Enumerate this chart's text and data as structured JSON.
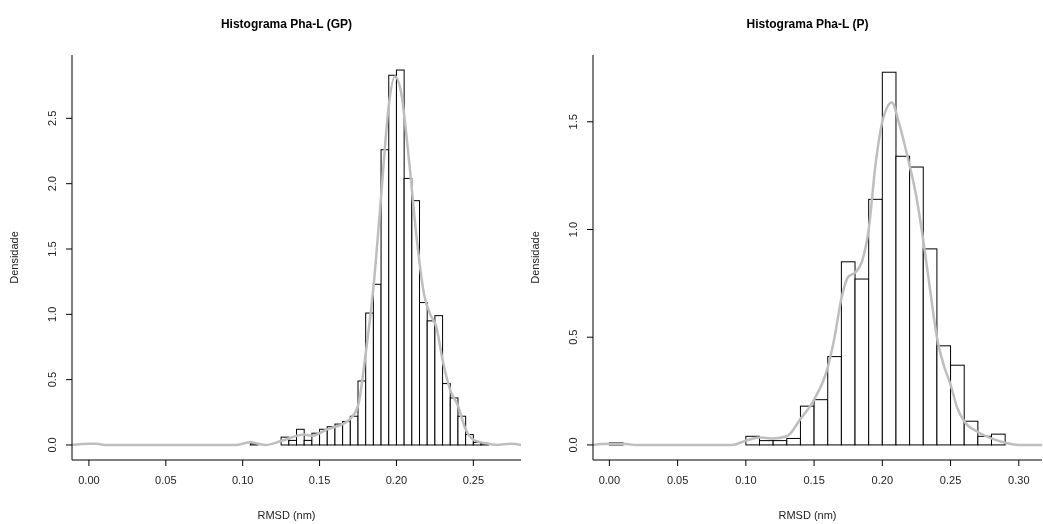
{
  "chart_data": [
    {
      "type": "histogram",
      "title": "Histograma Pha-L (GP)",
      "xlabel": "RMSD (nm)",
      "ylabel": "Densidade",
      "color": "#ffffff",
      "bins": [
        0.005,
        0.01,
        0.015,
        0.02,
        0.025,
        0.03,
        0.035,
        0.04,
        0.045,
        0.05,
        0.055,
        0.06,
        0.065,
        0.07,
        0.075,
        0.08,
        0.085,
        0.09,
        0.095,
        0.1,
        0.105,
        0.11,
        0.115,
        0.12,
        0.125,
        0.13,
        0.135,
        0.14,
        0.145,
        0.15,
        0.155,
        0.16,
        0.165,
        0.17,
        0.175,
        0.18,
        0.185,
        0.19,
        0.195,
        0.2,
        0.205,
        0.21,
        0.215,
        0.22,
        0.225,
        0.23,
        0.235,
        0.24,
        0.245,
        0.25,
        0.255,
        0.26,
        0.265,
        0.27
      ],
      "values": [
        0,
        0,
        0,
        0,
        0,
        0,
        0,
        0,
        0,
        0,
        0,
        0,
        0,
        0,
        0,
        0,
        0,
        0,
        0,
        null,
        0.01,
        0,
        0,
        0,
        0.06,
        0.035,
        0.12,
        0.035,
        0.09,
        0.12,
        0.14,
        0.16,
        0.18,
        0.22,
        0.49,
        1.01,
        1.23,
        2.26,
        2.83,
        2.87,
        2.04,
        1.87,
        1.09,
        0.95,
        0.99,
        0.47,
        0.36,
        0.22,
        0.08,
        0.02,
        0.01,
        0,
        0
      ],
      "xlim": [
        -0.011,
        0.281
      ],
      "ylim": [
        -0.115,
        2.985
      ],
      "xticks": [
        {
          "value": 0,
          "label": "0.00"
        },
        0.05,
        {
          "value": 0.1,
          "label": "0.10"
        },
        0.15,
        {
          "value": 0.2,
          "label": "0.20"
        },
        0.25
      ],
      "yticks": [
        {
          "value": 0,
          "label": "0.0"
        },
        0.5,
        {
          "value": 1,
          "label": "1.0"
        },
        1.5,
        {
          "value": 2,
          "label": "2.0"
        },
        2.5
      ],
      "series": [
        {
          "type": "line",
          "color": "#bebebe",
          "x": [
            -0.011,
            0,
            0.005,
            0.01,
            0.095,
            0.105,
            0.115,
            0.125,
            0.14,
            0.145,
            0.155,
            0.165,
            0.17,
            0.175,
            0.18,
            0.185,
            0.19,
            0.195,
            0.199,
            0.203,
            0.208,
            0.213,
            0.218,
            0.222,
            0.226,
            0.23,
            0.235,
            0.24,
            0.245,
            0.25,
            0.255,
            0.26,
            0.265,
            0.275,
            0.281
          ],
          "values": [
            0,
            0.01,
            0.01,
            0,
            0,
            0.02,
            0,
            0.03,
            0.08,
            0.07,
            0.12,
            0.16,
            0.2,
            0.3,
            0.7,
            1.2,
            1.9,
            2.6,
            2.82,
            2.7,
            2.2,
            1.6,
            1.15,
            1.0,
            0.9,
            0.65,
            0.42,
            0.3,
            0.12,
            0.04,
            0.02,
            0.01,
            0,
            0.01,
            0
          ]
        }
      ]
    },
    {
      "type": "histogram",
      "title": "Histograma Pha-L (P)",
      "xlabel": "RMSD (nm)",
      "ylabel": "Densidade",
      "color": "#ffffff",
      "bins": [
        0,
        0.01,
        0.02,
        0.03,
        0.04,
        0.05,
        0.06,
        0.07,
        0.08,
        0.09,
        0.1,
        0.11,
        0.12,
        0.13,
        0.14,
        0.15,
        0.16,
        0.17,
        0.18,
        0.19,
        0.2,
        0.21,
        0.22,
        0.23,
        0.24,
        0.25,
        0.26,
        0.27,
        0.28,
        0.29,
        0.3
      ],
      "values": [
        0.01,
        0,
        0,
        0,
        0,
        0,
        0,
        0,
        0,
        0,
        0.04,
        0.02,
        0.02,
        0.03,
        0.18,
        0.21,
        0.41,
        0.85,
        0.77,
        1.14,
        1.73,
        1.34,
        1.29,
        0.91,
        0.46,
        0.37,
        0.11,
        0.04,
        0.05,
        0
      ],
      "xlim": [
        -0.012,
        0.317
      ],
      "ylim": [
        -0.07,
        1.81
      ],
      "xticks": [
        {
          "value": 0,
          "label": "0.00"
        },
        0.05,
        {
          "value": 0.1,
          "label": "0.10"
        },
        0.15,
        {
          "value": 0.2,
          "label": "0.20"
        },
        0.25,
        {
          "value": 0.3,
          "label": "0.30"
        }
      ],
      "yticks": [
        {
          "value": 0,
          "label": "0.0"
        },
        0.5,
        {
          "value": 1,
          "label": "1.0"
        },
        1.5
      ],
      "series": [
        {
          "type": "line",
          "color": "#bebebe",
          "x": [
            -0.012,
            0,
            0.01,
            0.02,
            0.09,
            0.1,
            0.11,
            0.12,
            0.13,
            0.14,
            0.15,
            0.16,
            0.165,
            0.17,
            0.175,
            0.18,
            0.185,
            0.19,
            0.195,
            0.2,
            0.207,
            0.212,
            0.218,
            0.225,
            0.23,
            0.235,
            0.24,
            0.245,
            0.25,
            0.255,
            0.26,
            0.27,
            0.28,
            0.29,
            0.3,
            0.317
          ],
          "values": [
            0,
            0.005,
            0.005,
            0,
            0,
            0.02,
            0.035,
            0.03,
            0.04,
            0.12,
            0.21,
            0.36,
            0.5,
            0.68,
            0.78,
            0.8,
            0.85,
            1.0,
            1.3,
            1.5,
            1.59,
            1.5,
            1.35,
            1.15,
            0.95,
            0.72,
            0.5,
            0.37,
            0.28,
            0.17,
            0.11,
            0.06,
            0.03,
            0.01,
            0,
            0
          ]
        }
      ]
    }
  ]
}
